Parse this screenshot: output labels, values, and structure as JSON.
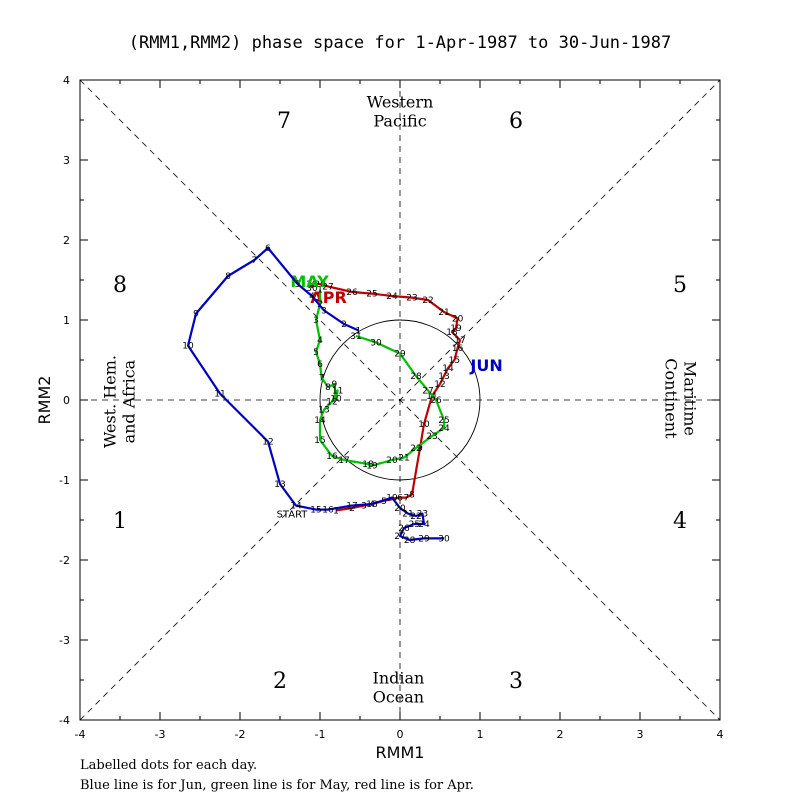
{
  "chart_data": {
    "type": "line",
    "title": "(RMM1,RMM2) phase space for  1-Apr-1987 to 30-Jun-1987",
    "xlabel": "RMM1",
    "ylabel": "RMM2",
    "xlim": [
      -4,
      4
    ],
    "ylim": [
      -4,
      4
    ],
    "x_ticks": [
      "-4",
      "-3",
      "-2",
      "-1",
      "0",
      "1",
      "2",
      "3",
      "4"
    ],
    "y_ticks": [
      "-4",
      "-3",
      "-2",
      "-1",
      "0",
      "1",
      "2",
      "3",
      "4"
    ],
    "phases": [
      {
        "label": "1",
        "x": -3.5,
        "y": -1.5
      },
      {
        "label": "2",
        "x": -1.5,
        "y": -3.5
      },
      {
        "label": "3",
        "x": 1.45,
        "y": -3.5
      },
      {
        "label": "4",
        "x": 3.5,
        "y": -1.5
      },
      {
        "label": "5",
        "x": 3.5,
        "y": 1.45
      },
      {
        "label": "6",
        "x": 1.45,
        "y": 3.5
      },
      {
        "label": "7",
        "x": -1.45,
        "y": 3.5
      },
      {
        "label": "8",
        "x": -3.5,
        "y": 1.45
      }
    ],
    "regions": [
      {
        "lines": [
          "Western",
          "Pacific"
        ],
        "x": 0.0,
        "y": 3.6,
        "orientation": "horizontal"
      },
      {
        "lines": [
          "Indian",
          "Ocean"
        ],
        "x": -0.02,
        "y": -3.6,
        "orientation": "horizontal"
      },
      {
        "lines": [
          "West. Hem.",
          "and Africa"
        ],
        "x": -3.5,
        "y": -0.02,
        "orientation": "vertical-up"
      },
      {
        "lines": [
          "Maritime",
          "Continent"
        ],
        "x": 3.5,
        "y": 0.02,
        "orientation": "vertical-down"
      }
    ],
    "start_label": {
      "text": "START",
      "x": -1.35,
      "y": -1.47
    },
    "series": [
      {
        "name": "Apr",
        "label": "APR",
        "color": "#c00000",
        "label_pos": {
          "x": -1.12,
          "y": 1.21
        },
        "points": [
          {
            "x": -0.8,
            "y": -1.38,
            "d": "1"
          },
          {
            "x": -0.6,
            "y": -1.35,
            "d": "2"
          },
          {
            "x": -0.45,
            "y": -1.32,
            "d": "3"
          },
          {
            "x": -0.35,
            "y": -1.3,
            "d": "4"
          },
          {
            "x": -0.2,
            "y": -1.26,
            "d": "5"
          },
          {
            "x": 0.0,
            "y": -1.22,
            "d": "6"
          },
          {
            "x": 0.08,
            "y": -1.22,
            "d": "7"
          },
          {
            "x": 0.15,
            "y": -1.18,
            "d": "8"
          },
          {
            "x": 0.25,
            "y": -0.6,
            "d": "9"
          },
          {
            "x": 0.3,
            "y": -0.3,
            "d": "10"
          },
          {
            "x": 0.4,
            "y": 0.05,
            "d": "11"
          },
          {
            "x": 0.5,
            "y": 0.2,
            "d": "12"
          },
          {
            "x": 0.55,
            "y": 0.3,
            "d": "13"
          },
          {
            "x": 0.6,
            "y": 0.4,
            "d": "14"
          },
          {
            "x": 0.68,
            "y": 0.5,
            "d": "15"
          },
          {
            "x": 0.72,
            "y": 0.65,
            "d": "16"
          },
          {
            "x": 0.75,
            "y": 0.75,
            "d": "17"
          },
          {
            "x": 0.65,
            "y": 0.85,
            "d": "18"
          },
          {
            "x": 0.7,
            "y": 0.9,
            "d": "19"
          },
          {
            "x": 0.72,
            "y": 1.02,
            "d": "20"
          },
          {
            "x": 0.55,
            "y": 1.1,
            "d": "21"
          },
          {
            "x": 0.35,
            "y": 1.25,
            "d": "22"
          },
          {
            "x": 0.15,
            "y": 1.28,
            "d": "23"
          },
          {
            "x": -0.1,
            "y": 1.3,
            "d": "24"
          },
          {
            "x": -0.35,
            "y": 1.33,
            "d": "25"
          },
          {
            "x": -0.6,
            "y": 1.35,
            "d": "26"
          },
          {
            "x": -0.9,
            "y": 1.42,
            "d": "27"
          },
          {
            "x": -1.0,
            "y": 1.45,
            "d": "28"
          },
          {
            "x": -1.1,
            "y": 1.45,
            "d": "29"
          },
          {
            "x": -1.1,
            "y": 1.4,
            "d": "30"
          }
        ]
      },
      {
        "name": "May",
        "label": "MAY",
        "color": "#00c000",
        "label_pos": {
          "x": -1.37,
          "y": 1.41
        },
        "points": [
          {
            "x": -1.0,
            "y": 1.38,
            "d": "1"
          },
          {
            "x": -1.0,
            "y": 1.2,
            "d": "2"
          },
          {
            "x": -1.05,
            "y": 1.0,
            "d": "3"
          },
          {
            "x": -1.0,
            "y": 0.75,
            "d": "4"
          },
          {
            "x": -1.05,
            "y": 0.6,
            "d": "5"
          },
          {
            "x": -1.0,
            "y": 0.45,
            "d": "6"
          },
          {
            "x": -0.98,
            "y": 0.28,
            "d": "7"
          },
          {
            "x": -0.9,
            "y": 0.16,
            "d": "8"
          },
          {
            "x": -0.82,
            "y": 0.2,
            "d": "9"
          },
          {
            "x": -0.8,
            "y": 0.02,
            "d": "10"
          },
          {
            "x": -0.78,
            "y": 0.12,
            "d": "11"
          },
          {
            "x": -0.85,
            "y": -0.02,
            "d": "12"
          },
          {
            "x": -0.95,
            "y": -0.12,
            "d": "13"
          },
          {
            "x": -1.0,
            "y": -0.25,
            "d": "14"
          },
          {
            "x": -1.0,
            "y": -0.5,
            "d": "15"
          },
          {
            "x": -0.85,
            "y": -0.7,
            "d": "16"
          },
          {
            "x": -0.7,
            "y": -0.75,
            "d": "17"
          },
          {
            "x": -0.4,
            "y": -0.8,
            "d": "18"
          },
          {
            "x": -0.35,
            "y": -0.82,
            "d": "19"
          },
          {
            "x": -0.1,
            "y": -0.75,
            "d": "20"
          },
          {
            "x": 0.05,
            "y": -0.72,
            "d": "21"
          },
          {
            "x": 0.2,
            "y": -0.6,
            "d": "22"
          },
          {
            "x": 0.4,
            "y": -0.45,
            "d": "23"
          },
          {
            "x": 0.55,
            "y": -0.35,
            "d": "24"
          },
          {
            "x": 0.55,
            "y": -0.25,
            "d": "25"
          },
          {
            "x": 0.45,
            "y": 0.0,
            "d": "26"
          },
          {
            "x": 0.35,
            "y": 0.12,
            "d": "27"
          },
          {
            "x": 0.2,
            "y": 0.3,
            "d": "28"
          },
          {
            "x": 0.0,
            "y": 0.58,
            "d": "29"
          },
          {
            "x": -0.3,
            "y": 0.72,
            "d": "30"
          },
          {
            "x": -0.55,
            "y": 0.8,
            "d": "31"
          }
        ]
      },
      {
        "name": "Jun",
        "label": "JUN",
        "color": "#0000c0",
        "label_pos": {
          "x": 0.88,
          "y": 0.36
        },
        "points": [
          {
            "x": -0.52,
            "y": 0.87,
            "d": "1"
          },
          {
            "x": -0.7,
            "y": 0.95,
            "d": "2"
          },
          {
            "x": -0.95,
            "y": 1.12,
            "d": "3"
          },
          {
            "x": -1.1,
            "y": 1.3,
            "d": "4"
          },
          {
            "x": -1.28,
            "y": 1.45,
            "d": "5"
          },
          {
            "x": -1.65,
            "y": 1.9,
            "d": "6"
          },
          {
            "x": -1.82,
            "y": 1.75,
            "d": "7"
          },
          {
            "x": -2.15,
            "y": 1.55,
            "d": "8"
          },
          {
            "x": -2.55,
            "y": 1.08,
            "d": "9"
          },
          {
            "x": -2.65,
            "y": 0.68,
            "d": "10"
          },
          {
            "x": -2.25,
            "y": 0.08,
            "d": "11"
          },
          {
            "x": -1.65,
            "y": -0.52,
            "d": "12"
          },
          {
            "x": -1.5,
            "y": -1.05,
            "d": "13"
          },
          {
            "x": -1.3,
            "y": -1.32,
            "d": "14"
          },
          {
            "x": -1.05,
            "y": -1.37,
            "d": "15"
          },
          {
            "x": -0.9,
            "y": -1.37,
            "d": "16"
          },
          {
            "x": -0.6,
            "y": -1.32,
            "d": "17"
          },
          {
            "x": -0.35,
            "y": -1.3,
            "d": "18"
          },
          {
            "x": -0.1,
            "y": -1.22,
            "d": "19"
          },
          {
            "x": 0.0,
            "y": -1.35,
            "d": "20"
          },
          {
            "x": 0.1,
            "y": -1.42,
            "d": "21"
          },
          {
            "x": 0.2,
            "y": -1.45,
            "d": "22"
          },
          {
            "x": 0.28,
            "y": -1.42,
            "d": "23"
          },
          {
            "x": 0.3,
            "y": -1.55,
            "d": "24"
          },
          {
            "x": 0.18,
            "y": -1.55,
            "d": "25"
          },
          {
            "x": 0.05,
            "y": -1.6,
            "d": "26"
          },
          {
            "x": 0.0,
            "y": -1.7,
            "d": "27"
          },
          {
            "x": 0.12,
            "y": -1.75,
            "d": "28"
          },
          {
            "x": 0.3,
            "y": -1.73,
            "d": "29"
          },
          {
            "x": 0.55,
            "y": -1.73,
            "d": "30"
          }
        ]
      }
    ]
  },
  "axis_labels": {
    "x": "RMM1",
    "y": "RMM2"
  },
  "footer": {
    "line1": "Labelled dots for each day.",
    "line2": "Blue line is for Jun, green line is for May, red line is for Apr."
  }
}
